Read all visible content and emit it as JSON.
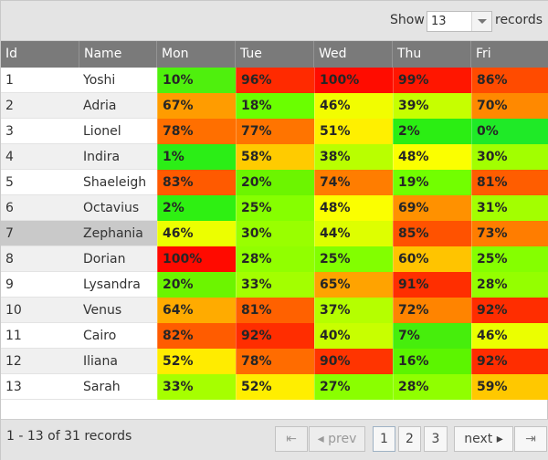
{
  "toolbar": {
    "show_label": "Show",
    "page_size": "13",
    "records_label": "records"
  },
  "columns": [
    "Id",
    "Name",
    "Mon",
    "Tue",
    "Wed",
    "Thu",
    "Fri"
  ],
  "rows": [
    {
      "id": "1",
      "name": "Yoshi",
      "days": [
        "10%",
        "96%",
        "100%",
        "99%",
        "86%"
      ],
      "colors": [
        "#4ff00d",
        "#ff2a00",
        "#ff0c00",
        "#ff1600",
        "#ff4b00"
      ]
    },
    {
      "id": "2",
      "name": "Adria",
      "days": [
        "67%",
        "18%",
        "46%",
        "39%",
        "70%"
      ],
      "colors": [
        "#ff9c00",
        "#6aff00",
        "#f2fd00",
        "#c6ff00",
        "#ff8900"
      ]
    },
    {
      "id": "3",
      "name": "Lionel",
      "days": [
        "78%",
        "77%",
        "51%",
        "2%",
        "0%"
      ],
      "colors": [
        "#ff6f00",
        "#ff7400",
        "#fff000",
        "#2bee13",
        "#1fea27"
      ]
    },
    {
      "id": "4",
      "name": "Indira",
      "days": [
        "1%",
        "58%",
        "38%",
        "48%",
        "30%"
      ],
      "colors": [
        "#2bee16",
        "#ffcb00",
        "#b9ff00",
        "#fbff00",
        "#a2ff00"
      ]
    },
    {
      "id": "5",
      "name": "Shaeleigh",
      "days": [
        "83%",
        "20%",
        "74%",
        "19%",
        "81%"
      ],
      "colors": [
        "#ff5a00",
        "#6cf500",
        "#ff7d00",
        "#72ff00",
        "#ff5d00"
      ]
    },
    {
      "id": "6",
      "name": "Octavius",
      "days": [
        "2%",
        "25%",
        "48%",
        "69%",
        "31%"
      ],
      "colors": [
        "#2ef012",
        "#86ff00",
        "#fbff00",
        "#ff9100",
        "#a3ff00"
      ]
    },
    {
      "id": "7",
      "name": "Zephania",
      "days": [
        "46%",
        "30%",
        "44%",
        "85%",
        "73%"
      ],
      "colors": [
        "#ecff00",
        "#99ff00",
        "#deff00",
        "#ff5200",
        "#ff7d00"
      ]
    },
    {
      "id": "8",
      "name": "Dorian",
      "days": [
        "100%",
        "28%",
        "25%",
        "60%",
        "25%"
      ],
      "colors": [
        "#ff0a00",
        "#91ff00",
        "#82ff00",
        "#ffc400",
        "#85ff00"
      ]
    },
    {
      "id": "9",
      "name": "Lysandra",
      "days": [
        "20%",
        "33%",
        "65%",
        "91%",
        "28%"
      ],
      "colors": [
        "#6cf500",
        "#a3ff00",
        "#ffa300",
        "#ff2e00",
        "#94ff00"
      ]
    },
    {
      "id": "10",
      "name": "Venus",
      "days": [
        "64%",
        "81%",
        "37%",
        "72%",
        "92%"
      ],
      "colors": [
        "#ffab00",
        "#ff6100",
        "#b5ff00",
        "#ff8400",
        "#ff2d00"
      ]
    },
    {
      "id": "11",
      "name": "Cairo",
      "days": [
        "82%",
        "92%",
        "40%",
        "7%",
        "46%"
      ],
      "colors": [
        "#ff5c00",
        "#ff2d00",
        "#c8ff00",
        "#46ee0c",
        "#ebff00"
      ]
    },
    {
      "id": "12",
      "name": "Iliana",
      "days": [
        "52%",
        "78%",
        "90%",
        "16%",
        "92%"
      ],
      "colors": [
        "#ffec00",
        "#ff6c00",
        "#ff3400",
        "#5cf500",
        "#ff2d00"
      ]
    },
    {
      "id": "13",
      "name": "Sarah",
      "days": [
        "33%",
        "52%",
        "27%",
        "28%",
        "59%"
      ],
      "colors": [
        "#a6ff00",
        "#ffee00",
        "#8aff00",
        "#90ff00",
        "#ffc800"
      ]
    }
  ],
  "selected_row": 7,
  "pager": {
    "info": "1 - 13 of 31 records",
    "first_icon": "⇤",
    "prev_label": "◂  prev",
    "pages": [
      "1",
      "2",
      "3"
    ],
    "current_page": "1",
    "next_label": "next  ▸",
    "last_icon": "⇥"
  }
}
